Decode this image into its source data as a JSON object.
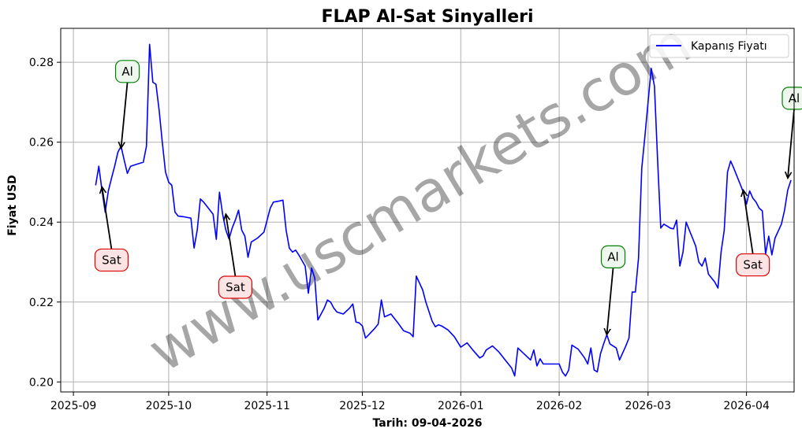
{
  "chart_data": {
    "type": "line",
    "title": "FLAP Al-Sat Sinyalleri",
    "xlabel": "Tarih: 09-04-2026",
    "ylabel": "Fiyat USD",
    "ylim": [
      0.1975,
      0.2885
    ],
    "xlim": [
      "2025-08-28",
      "2026-04-16"
    ],
    "grid": true,
    "legend_position": "top-right",
    "y_ticks": [
      "0.20",
      "0.22",
      "0.24",
      "0.26",
      "0.28"
    ],
    "x_ticks": [
      {
        "date": "2025-09-01",
        "label": "2025-09"
      },
      {
        "date": "2025-10-01",
        "label": "2025-10"
      },
      {
        "date": "2025-11-01",
        "label": "2025-11"
      },
      {
        "date": "2025-12-01",
        "label": "2025-12"
      },
      {
        "date": "2026-01-01",
        "label": "2026-01"
      },
      {
        "date": "2026-02-01",
        "label": "2026-02"
      },
      {
        "date": "2026-03-01",
        "label": "2026-03"
      },
      {
        "date": "2026-04-01",
        "label": "2026-04"
      }
    ],
    "series": [
      {
        "name": "Kapanış Fiyatı",
        "color": "#0000ff",
        "points": [
          [
            "2025-09-08",
            0.2492
          ],
          [
            "2025-09-09",
            0.254
          ],
          [
            "2025-09-10",
            0.248
          ],
          [
            "2025-09-11",
            0.2425
          ],
          [
            "2025-09-12",
            0.2478
          ],
          [
            "2025-09-13",
            0.251
          ],
          [
            "2025-09-14",
            0.254
          ],
          [
            "2025-09-15",
            0.2575
          ],
          [
            "2025-09-16",
            0.259
          ],
          [
            "2025-09-17",
            0.2555
          ],
          [
            "2025-09-18",
            0.2522
          ],
          [
            "2025-09-19",
            0.254
          ],
          [
            "2025-09-21",
            0.2545
          ],
          [
            "2025-09-23",
            0.255
          ],
          [
            "2025-09-24",
            0.259
          ],
          [
            "2025-09-25",
            0.2845
          ],
          [
            "2025-09-26",
            0.275
          ],
          [
            "2025-09-27",
            0.2745
          ],
          [
            "2025-09-28",
            0.268
          ],
          [
            "2025-09-29",
            0.26
          ],
          [
            "2025-09-30",
            0.2525
          ],
          [
            "2025-10-01",
            0.25
          ],
          [
            "2025-10-02",
            0.2492
          ],
          [
            "2025-10-03",
            0.2425
          ],
          [
            "2025-10-04",
            0.2415
          ],
          [
            "2025-10-06",
            0.2413
          ],
          [
            "2025-10-08",
            0.241
          ],
          [
            "2025-10-09",
            0.2335
          ],
          [
            "2025-10-10",
            0.238
          ],
          [
            "2025-10-11",
            0.2458
          ],
          [
            "2025-10-12",
            0.245
          ],
          [
            "2025-10-13",
            0.244
          ],
          [
            "2025-10-15",
            0.242
          ],
          [
            "2025-10-16",
            0.2357
          ],
          [
            "2025-10-17",
            0.2475
          ],
          [
            "2025-10-18",
            0.242
          ],
          [
            "2025-10-19",
            0.238
          ],
          [
            "2025-10-20",
            0.2358
          ],
          [
            "2025-10-21",
            0.2385
          ],
          [
            "2025-10-22",
            0.2405
          ],
          [
            "2025-10-23",
            0.243
          ],
          [
            "2025-10-24",
            0.238
          ],
          [
            "2025-10-25",
            0.2365
          ],
          [
            "2025-10-26",
            0.2312
          ],
          [
            "2025-10-27",
            0.235
          ],
          [
            "2025-10-29",
            0.236
          ],
          [
            "2025-10-31",
            0.2375
          ],
          [
            "2025-11-02",
            0.2435
          ],
          [
            "2025-11-03",
            0.245
          ],
          [
            "2025-11-05",
            0.2453
          ],
          [
            "2025-11-06",
            0.2455
          ],
          [
            "2025-11-07",
            0.238
          ],
          [
            "2025-11-08",
            0.2335
          ],
          [
            "2025-11-09",
            0.2325
          ],
          [
            "2025-11-10",
            0.233
          ],
          [
            "2025-11-11",
            0.2318
          ],
          [
            "2025-11-13",
            0.229
          ],
          [
            "2025-11-14",
            0.2222
          ],
          [
            "2025-11-15",
            0.2285
          ],
          [
            "2025-11-16",
            0.226
          ],
          [
            "2025-11-17",
            0.2155
          ],
          [
            "2025-11-19",
            0.2185
          ],
          [
            "2025-11-20",
            0.2205
          ],
          [
            "2025-11-21",
            0.22
          ],
          [
            "2025-11-22",
            0.2185
          ],
          [
            "2025-11-23",
            0.2175
          ],
          [
            "2025-11-25",
            0.217
          ],
          [
            "2025-11-27",
            0.2185
          ],
          [
            "2025-11-28",
            0.2195
          ],
          [
            "2025-11-29",
            0.215
          ],
          [
            "2025-11-30",
            0.2148
          ],
          [
            "2025-12-01",
            0.214
          ],
          [
            "2025-12-02",
            0.211
          ],
          [
            "2025-12-03",
            0.2118
          ],
          [
            "2025-12-05",
            0.2135
          ],
          [
            "2025-12-06",
            0.2145
          ],
          [
            "2025-12-07",
            0.2205
          ],
          [
            "2025-12-08",
            0.2163
          ],
          [
            "2025-12-10",
            0.217
          ],
          [
            "2025-12-12",
            0.215
          ],
          [
            "2025-12-14",
            0.2128
          ],
          [
            "2025-12-16",
            0.2122
          ],
          [
            "2025-12-17",
            0.2113
          ],
          [
            "2025-12-18",
            0.2265
          ],
          [
            "2025-12-20",
            0.223
          ],
          [
            "2025-12-21",
            0.22
          ],
          [
            "2025-12-23",
            0.2152
          ],
          [
            "2025-12-24",
            0.2138
          ],
          [
            "2025-12-25",
            0.2143
          ],
          [
            "2025-12-26",
            0.214
          ],
          [
            "2025-12-28",
            0.213
          ],
          [
            "2025-12-30",
            0.2113
          ],
          [
            "2026-01-01",
            0.2087
          ],
          [
            "2026-01-03",
            0.2098
          ],
          [
            "2026-01-05",
            0.2078
          ],
          [
            "2026-01-07",
            0.206
          ],
          [
            "2026-01-08",
            0.2065
          ],
          [
            "2026-01-09",
            0.208
          ],
          [
            "2026-01-11",
            0.209
          ],
          [
            "2026-01-13",
            0.2075
          ],
          [
            "2026-01-15",
            0.2055
          ],
          [
            "2026-01-17",
            0.2035
          ],
          [
            "2026-01-18",
            0.2015
          ],
          [
            "2026-01-19",
            0.2085
          ],
          [
            "2026-01-21",
            0.207
          ],
          [
            "2026-01-23",
            0.2055
          ],
          [
            "2026-01-24",
            0.208
          ],
          [
            "2026-01-25",
            0.204
          ],
          [
            "2026-01-26",
            0.2058
          ],
          [
            "2026-01-27",
            0.2045
          ],
          [
            "2026-01-28",
            0.2045
          ],
          [
            "2026-01-30",
            0.2045
          ],
          [
            "2026-02-01",
            0.2045
          ],
          [
            "2026-02-02",
            0.2025
          ],
          [
            "2026-02-03",
            0.2015
          ],
          [
            "2026-02-04",
            0.203
          ],
          [
            "2026-02-05",
            0.2092
          ],
          [
            "2026-02-07",
            0.2082
          ],
          [
            "2026-02-09",
            0.206
          ],
          [
            "2026-02-10",
            0.2045
          ],
          [
            "2026-02-11",
            0.2085
          ],
          [
            "2026-02-12",
            0.203
          ],
          [
            "2026-02-13",
            0.2025
          ],
          [
            "2026-02-14",
            0.207
          ],
          [
            "2026-02-15",
            0.2095
          ],
          [
            "2026-02-16",
            0.2118
          ],
          [
            "2026-02-17",
            0.2095
          ],
          [
            "2026-02-19",
            0.2085
          ],
          [
            "2026-02-20",
            0.2055
          ],
          [
            "2026-02-22",
            0.209
          ],
          [
            "2026-02-23",
            0.211
          ],
          [
            "2026-02-24",
            0.2225
          ],
          [
            "2026-02-25",
            0.2225
          ],
          [
            "2026-02-26",
            0.231
          ],
          [
            "2026-02-27",
            0.2535
          ],
          [
            "2026-02-28",
            0.2615
          ],
          [
            "2026-03-01",
            0.27
          ],
          [
            "2026-03-02",
            0.2785
          ],
          [
            "2026-03-03",
            0.274
          ],
          [
            "2026-03-04",
            0.2555
          ],
          [
            "2026-03-05",
            0.2385
          ],
          [
            "2026-03-06",
            0.2395
          ],
          [
            "2026-03-07",
            0.239
          ],
          [
            "2026-03-08",
            0.2385
          ],
          [
            "2026-03-09",
            0.2383
          ],
          [
            "2026-03-10",
            0.2405
          ],
          [
            "2026-03-11",
            0.229
          ],
          [
            "2026-03-12",
            0.2325
          ],
          [
            "2026-03-13",
            0.24
          ],
          [
            "2026-03-14",
            0.238
          ],
          [
            "2026-03-15",
            0.236
          ],
          [
            "2026-03-16",
            0.234
          ],
          [
            "2026-03-17",
            0.23
          ],
          [
            "2026-03-18",
            0.229
          ],
          [
            "2026-03-19",
            0.231
          ],
          [
            "2026-03-20",
            0.227
          ],
          [
            "2026-03-22",
            0.225
          ],
          [
            "2026-03-23",
            0.2235
          ],
          [
            "2026-03-24",
            0.2325
          ],
          [
            "2026-03-25",
            0.238
          ],
          [
            "2026-03-26",
            0.2525
          ],
          [
            "2026-03-27",
            0.2553
          ],
          [
            "2026-03-28",
            0.2535
          ],
          [
            "2026-03-29",
            0.2515
          ],
          [
            "2026-03-30",
            0.2495
          ],
          [
            "2026-03-31",
            0.2475
          ],
          [
            "2026-04-01",
            0.2445
          ],
          [
            "2026-04-02",
            0.2478
          ],
          [
            "2026-04-03",
            0.246
          ],
          [
            "2026-04-04",
            0.245
          ],
          [
            "2026-04-05",
            0.2435
          ],
          [
            "2026-04-06",
            0.2428
          ],
          [
            "2026-04-07",
            0.232
          ],
          [
            "2026-04-08",
            0.2365
          ],
          [
            "2026-04-09",
            0.2318
          ],
          [
            "2026-04-10",
            0.236
          ],
          [
            "2026-04-12",
            0.2395
          ],
          [
            "2026-04-13",
            0.243
          ],
          [
            "2026-04-14",
            0.248
          ],
          [
            "2026-04-15",
            0.2505
          ]
        ]
      }
    ],
    "annotations": [
      {
        "text": "Al",
        "type": "buy",
        "date": "2025-09-16",
        "value": 0.2585,
        "text_date": "2025-09-18",
        "text_value": 0.2777
      },
      {
        "text": "Sat",
        "type": "sell",
        "date": "2025-09-10",
        "value": 0.2488,
        "text_date": "2025-09-13",
        "text_value": 0.2305
      },
      {
        "text": "Sat",
        "type": "sell",
        "date": "2025-10-19",
        "value": 0.242,
        "text_date": "2025-10-22",
        "text_value": 0.2237
      },
      {
        "text": "Al",
        "type": "buy",
        "date": "2026-02-16",
        "value": 0.2118,
        "text_date": "2026-02-18",
        "text_value": 0.2313
      },
      {
        "text": "Sat",
        "type": "sell",
        "date": "2026-03-31",
        "value": 0.248,
        "text_date": "2026-04-03",
        "text_value": 0.2293
      },
      {
        "text": "Al",
        "type": "buy",
        "date": "2026-04-14",
        "value": 0.251,
        "text_date": "2026-04-16",
        "text_value": 0.271
      }
    ]
  },
  "watermark": "www.uscmarkets.com",
  "colors": {
    "line": "#0000ff",
    "buy_edge": "#008000",
    "buy_fill": "#eef7ee",
    "sell_edge": "#e00000",
    "sell_fill": "#fde4e4",
    "grid": "#b0b0b0"
  }
}
